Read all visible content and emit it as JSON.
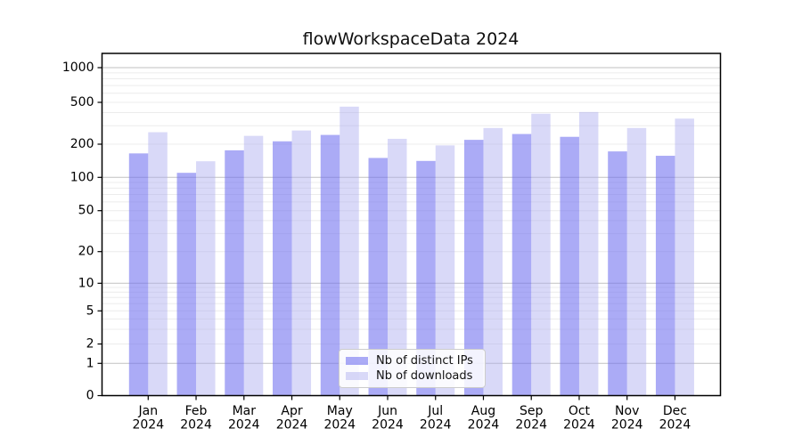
{
  "title": "flowWorkspaceData 2024",
  "chart_data": {
    "type": "bar",
    "title": "flowWorkspaceData 2024",
    "categories": [
      "Jan 2024",
      "Feb 2024",
      "Mar 2024",
      "Apr 2024",
      "May 2024",
      "Jun 2024",
      "Jul 2024",
      "Aug 2024",
      "Sep 2024",
      "Oct 2024",
      "Nov 2024",
      "Dec 2024"
    ],
    "series": [
      {
        "key": "distinct-ips",
        "name": "Nb of distinct IPs",
        "color": "#6e6ef0",
        "opacity": 0.58,
        "values": [
          165,
          110,
          176,
          213,
          245,
          150,
          141,
          220,
          250,
          235,
          172,
          157
        ]
      },
      {
        "key": "downloads",
        "name": "Nb of downloads",
        "color": "#aaaaf0",
        "opacity": 0.45,
        "values": [
          260,
          140,
          240,
          270,
          455,
          225,
          195,
          285,
          390,
          405,
          285,
          350
        ]
      }
    ],
    "xlabel": "",
    "ylabel": "",
    "yscale": "symlog",
    "yticks": [
      0,
      1,
      2,
      5,
      10,
      20,
      50,
      100,
      200,
      500,
      1000
    ],
    "ylim": [
      0,
      1350
    ],
    "grid": "horizontal, log minor gridlines",
    "legend_position": "lower center"
  },
  "colors": {
    "major_gridline": "#c2c2c2",
    "minor_gridline": "#ececec",
    "spine": "#000000",
    "tick_label": "#000000",
    "background": "#ffffff"
  }
}
